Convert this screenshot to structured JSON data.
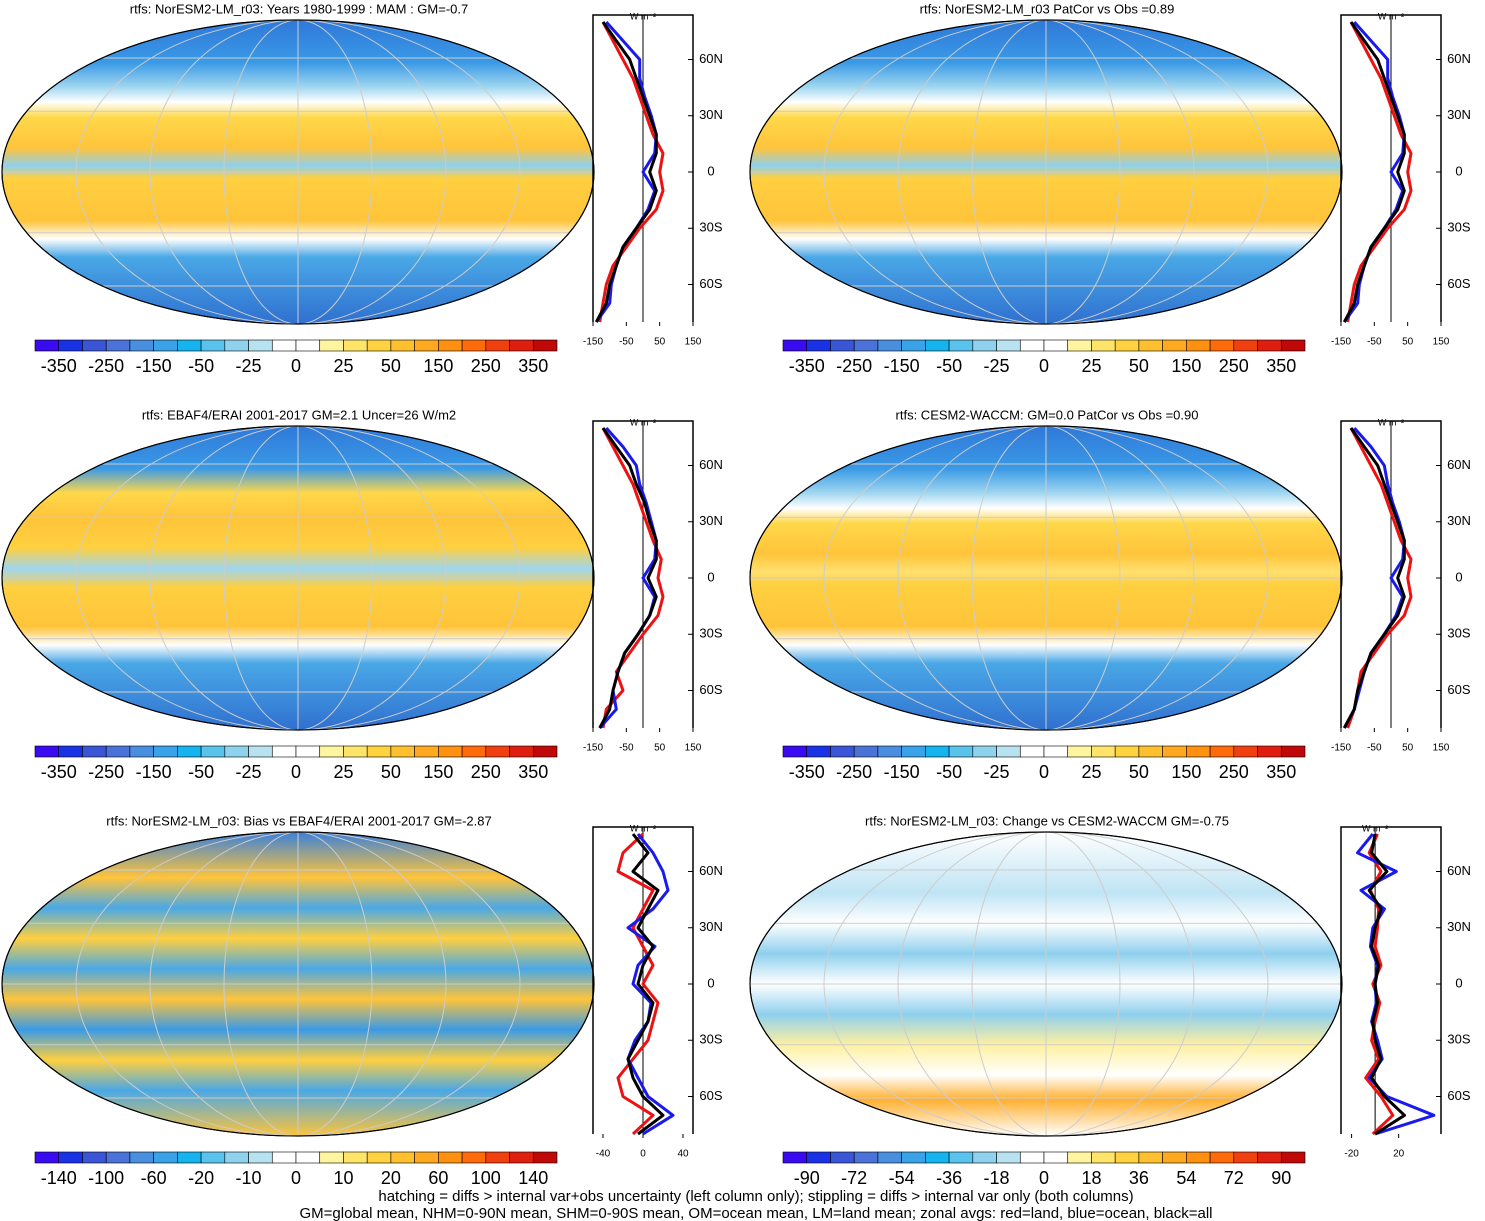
{
  "unit": "W m⁻²",
  "zonal_lat": [
    -80,
    -70,
    -60,
    -50,
    -40,
    -30,
    -20,
    -10,
    0,
    10,
    20,
    30,
    40,
    50,
    60,
    70,
    80
  ],
  "zonal_ylim": [
    -80,
    80
  ],
  "zonal_yticks": [
    {
      "value": 60,
      "label": "60N"
    },
    {
      "value": 30,
      "label": "30N"
    },
    0,
    {
      "value": -30,
      "label": "30S"
    },
    {
      "value": -60,
      "label": "60S"
    }
  ],
  "zonal_colors": [
    "#ee1111",
    "#1a1aee",
    "#000000"
  ],
  "colorbar_colors": [
    "#3a0af0",
    "#1a32e6",
    "#3a55d6",
    "#4a72d8",
    "#4a8ee0",
    "#3aa2e8",
    "#16b4ee",
    "#5ac3ec",
    "#8fd2ee",
    "#b8e2f0",
    "#ffffff",
    "#ffffff",
    "#fff5a0",
    "#ffe46a",
    "#ffd240",
    "#ffc030",
    "#ffa820",
    "#ff9010",
    "#ff6a0a",
    "#f04010",
    "#e01e10",
    "#c00808"
  ],
  "panels": [
    {
      "title": "rtfs: NorESM2-LM_r03: Years 1980-1999 : MAM : GM=-0.7",
      "colorbar_labels": [
        -350,
        -250,
        -150,
        -50,
        -25,
        0,
        25,
        50,
        150,
        250,
        350
      ],
      "zonal_xlim": [
        -150,
        150
      ],
      "zonal_xticks": [
        -150,
        -50,
        50,
        150
      ],
      "zonal": [
        [
          -130,
          -120,
          -110,
          -90,
          -50,
          -10,
          40,
          60,
          50,
          60,
          30,
          10,
          -10,
          -30,
          -60,
          -90,
          -120
        ],
        [
          -140,
          -100,
          -95,
          -80,
          -60,
          -20,
          15,
          35,
          0,
          35,
          40,
          25,
          5,
          -10,
          -10,
          -60,
          -110
        ],
        [
          -140,
          -110,
          -100,
          -80,
          -60,
          -20,
          20,
          40,
          20,
          40,
          40,
          20,
          0,
          -20,
          -40,
          -80,
          -120
        ]
      ]
    },
    {
      "title": "rtfs: NorESM2-LM_r03 PatCor vs Obs =0.89",
      "colorbar_labels": [
        -350,
        -250,
        -150,
        -50,
        -25,
        0,
        25,
        50,
        150,
        250,
        350
      ],
      "zonal_xlim": [
        -150,
        150
      ],
      "zonal_xticks": [
        -150,
        -50,
        50,
        150
      ],
      "zonal": [
        [
          -130,
          -120,
          -110,
          -90,
          -50,
          -10,
          40,
          60,
          50,
          60,
          30,
          10,
          -10,
          -30,
          -60,
          -90,
          -120
        ],
        [
          -140,
          -100,
          -95,
          -80,
          -60,
          -20,
          15,
          35,
          0,
          35,
          40,
          25,
          5,
          -10,
          -10,
          -60,
          -110
        ],
        [
          -140,
          -110,
          -100,
          -80,
          -60,
          -20,
          20,
          40,
          20,
          40,
          40,
          20,
          0,
          -20,
          -40,
          -80,
          -120
        ]
      ]
    },
    {
      "title": "rtfs: EBAF4/ERAI 2001-2017 GM=2.1 Uncer=26 W/m2",
      "colorbar_labels": [
        -350,
        -250,
        -150,
        -50,
        -25,
        0,
        25,
        50,
        150,
        250,
        350
      ],
      "zonal_xlim": [
        -150,
        150
      ],
      "zonal_xticks": [
        -150,
        -50,
        50,
        150
      ],
      "zonal": [
        [
          -120,
          -110,
          -60,
          -80,
          -40,
          0,
          45,
          60,
          45,
          55,
          30,
          10,
          -10,
          -30,
          -60,
          -90,
          -120
        ],
        [
          -130,
          -80,
          -90,
          -75,
          -55,
          -15,
          20,
          35,
          0,
          35,
          40,
          25,
          10,
          -10,
          -20,
          -60,
          -110
        ],
        [
          -130,
          -100,
          -90,
          -75,
          -55,
          -15,
          20,
          40,
          15,
          40,
          40,
          20,
          5,
          -20,
          -40,
          -80,
          -120
        ]
      ]
    },
    {
      "title": "rtfs: CESM2-WACCM: GM=0.0 PatCor vs Obs =0.90",
      "colorbar_labels": [
        -350,
        -250,
        -150,
        -50,
        -25,
        0,
        25,
        50,
        150,
        250,
        350
      ],
      "zonal_xlim": [
        -150,
        150
      ],
      "zonal_xticks": [
        -150,
        -50,
        50,
        150
      ],
      "zonal": [
        [
          -130,
          -110,
          -100,
          -90,
          -50,
          -10,
          40,
          60,
          50,
          60,
          30,
          10,
          -10,
          -30,
          -60,
          -90,
          -120
        ],
        [
          -140,
          -110,
          -95,
          -80,
          -60,
          -20,
          15,
          35,
          0,
          35,
          40,
          25,
          5,
          -10,
          -20,
          -60,
          -110
        ],
        [
          -140,
          -110,
          -100,
          -80,
          -60,
          -20,
          20,
          40,
          20,
          40,
          40,
          20,
          0,
          -20,
          -40,
          -80,
          -120
        ]
      ]
    },
    {
      "title": "rtfs: NorESM2-LM_r03: Bias vs EBAF4/ERAI 2001-2017 GM=-2.87",
      "colorbar_labels": [
        -140,
        -100,
        -60,
        -20,
        -10,
        0,
        10,
        20,
        60,
        100,
        140
      ],
      "zonal_xlim": [
        -50,
        50
      ],
      "zonal_xticks": [
        -40,
        0,
        40
      ],
      "zonal": [
        [
          -10,
          10,
          -20,
          -25,
          -10,
          5,
          10,
          15,
          0,
          10,
          0,
          -10,
          0,
          10,
          -25,
          -20,
          0
        ],
        [
          0,
          30,
          5,
          -5,
          -15,
          -8,
          5,
          8,
          -10,
          -5,
          12,
          -15,
          10,
          25,
          20,
          10,
          -5
        ],
        [
          -5,
          20,
          0,
          -10,
          -15,
          -5,
          5,
          10,
          -5,
          0,
          10,
          -5,
          5,
          15,
          -10,
          5,
          -10
        ]
      ]
    },
    {
      "title": "rtfs: NorESM2-LM_r03: Change vs CESM2-WACCM GM=-0.75",
      "colorbar_labels": [
        -90,
        -72,
        -54,
        -36,
        -18,
        0,
        18,
        36,
        54,
        72,
        90
      ],
      "zonal_xlim": [
        -29,
        56
      ],
      "zonal_xticks": [
        -20,
        20
      ],
      "zonal": [
        [
          -2,
          15,
          5,
          -8,
          3,
          -3,
          0,
          4,
          -2,
          5,
          0,
          2,
          3,
          -4,
          5,
          -5,
          2
        ],
        [
          0,
          50,
          10,
          -5,
          6,
          2,
          -3,
          1,
          0,
          2,
          -4,
          -2,
          8,
          -12,
          18,
          -15,
          -2
        ],
        [
          0,
          25,
          8,
          -3,
          5,
          0,
          -2,
          2,
          0,
          3,
          -3,
          0,
          5,
          -5,
          10,
          -3,
          0
        ]
      ]
    }
  ],
  "footer": [
    "hatching = diffs > internal var+obs uncertainty (left column only); stippling = diffs > internal var only (both columns)",
    "GM=global mean, NHM=0-90N mean, SHM=0-90S mean, OM=ocean mean, LM=land mean; zonal avgs: red=land, blue=ocean, black=all"
  ]
}
